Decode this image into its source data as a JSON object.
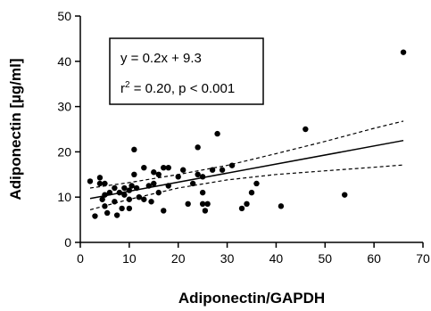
{
  "chart_data": {
    "type": "scatter",
    "xlabel": "Adiponectin/GAPDH",
    "ylabel": "Adiponectin [µg/ml]",
    "xlim": [
      0,
      70
    ],
    "ylim": [
      0,
      50
    ],
    "xticks": [
      0,
      10,
      20,
      30,
      40,
      50,
      60,
      70
    ],
    "yticks": [
      0,
      10,
      20,
      30,
      40,
      50
    ],
    "grid": false,
    "annotation": {
      "equation": "y = 0.2x + 9.3",
      "stats_prefix": "r",
      "stats_superscript": "2",
      "stats_suffix": " = 0.20, p < 0.001"
    },
    "regression": {
      "slope": 0.2,
      "intercept": 9.3,
      "x_range": [
        2,
        66
      ]
    },
    "confidence_band": {
      "x": [
        2,
        10,
        20,
        30,
        40,
        50,
        60,
        66
      ],
      "upper": [
        12.0,
        13.2,
        15.0,
        17.0,
        19.6,
        22.3,
        25.2,
        26.8
      ],
      "lower": [
        7.2,
        9.5,
        12.0,
        13.8,
        15.0,
        15.8,
        16.6,
        17.1
      ]
    },
    "points": [
      {
        "x": 2,
        "y": 13.5
      },
      {
        "x": 3,
        "y": 5.8
      },
      {
        "x": 4,
        "y": 14.3
      },
      {
        "x": 4,
        "y": 13.0
      },
      {
        "x": 4.5,
        "y": 9.5
      },
      {
        "x": 5,
        "y": 13.0
      },
      {
        "x": 5,
        "y": 10.5
      },
      {
        "x": 5,
        "y": 8.0
      },
      {
        "x": 5.5,
        "y": 6.5
      },
      {
        "x": 6,
        "y": 11.0
      },
      {
        "x": 7,
        "y": 12.0
      },
      {
        "x": 7,
        "y": 9.0
      },
      {
        "x": 7.5,
        "y": 6.0
      },
      {
        "x": 8,
        "y": 11.0
      },
      {
        "x": 8.5,
        "y": 7.5
      },
      {
        "x": 9,
        "y": 10.5
      },
      {
        "x": 9,
        "y": 12.0
      },
      {
        "x": 10,
        "y": 11.5
      },
      {
        "x": 10,
        "y": 9.5
      },
      {
        "x": 10,
        "y": 7.5
      },
      {
        "x": 10.5,
        "y": 12.5
      },
      {
        "x": 11,
        "y": 20.5
      },
      {
        "x": 11,
        "y": 15.0
      },
      {
        "x": 11.5,
        "y": 12.0
      },
      {
        "x": 12,
        "y": 10.0
      },
      {
        "x": 13,
        "y": 16.5
      },
      {
        "x": 13,
        "y": 9.5
      },
      {
        "x": 14,
        "y": 12.5
      },
      {
        "x": 14.5,
        "y": 9.0
      },
      {
        "x": 15,
        "y": 15.5
      },
      {
        "x": 15,
        "y": 13.0
      },
      {
        "x": 16,
        "y": 15.0
      },
      {
        "x": 16,
        "y": 11.0
      },
      {
        "x": 17,
        "y": 16.5
      },
      {
        "x": 17,
        "y": 7.0
      },
      {
        "x": 18,
        "y": 16.5
      },
      {
        "x": 18,
        "y": 12.5
      },
      {
        "x": 20,
        "y": 14.5
      },
      {
        "x": 21,
        "y": 16.0
      },
      {
        "x": 22,
        "y": 8.5
      },
      {
        "x": 23,
        "y": 13.0
      },
      {
        "x": 24,
        "y": 21.0
      },
      {
        "x": 24,
        "y": 15.0
      },
      {
        "x": 25,
        "y": 14.5
      },
      {
        "x": 25,
        "y": 11.0
      },
      {
        "x": 25,
        "y": 8.5
      },
      {
        "x": 25.5,
        "y": 7.0
      },
      {
        "x": 26,
        "y": 8.5
      },
      {
        "x": 27,
        "y": 16.0
      },
      {
        "x": 28,
        "y": 24.0
      },
      {
        "x": 29,
        "y": 16.0
      },
      {
        "x": 31,
        "y": 17.0
      },
      {
        "x": 33,
        "y": 7.5
      },
      {
        "x": 34,
        "y": 8.5
      },
      {
        "x": 35,
        "y": 11.0
      },
      {
        "x": 36,
        "y": 13.0
      },
      {
        "x": 41,
        "y": 8.0
      },
      {
        "x": 46,
        "y": 25.0
      },
      {
        "x": 54,
        "y": 10.5
      },
      {
        "x": 66,
        "y": 42.0
      }
    ]
  }
}
